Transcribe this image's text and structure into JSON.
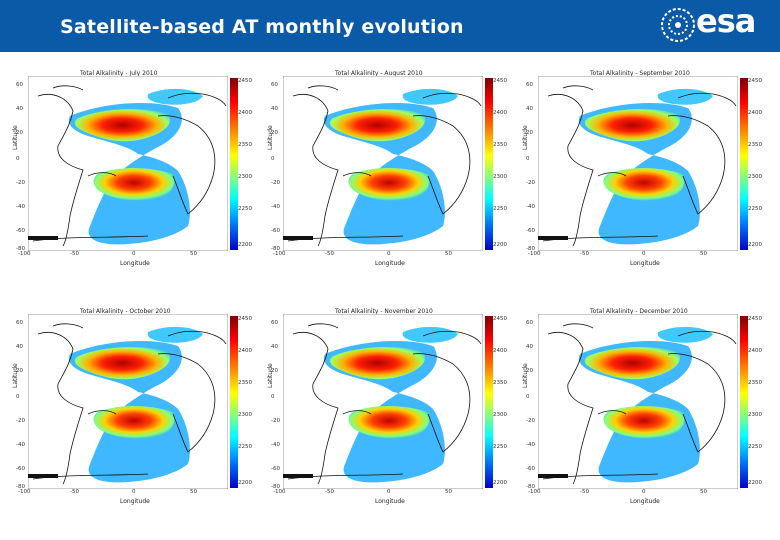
{
  "header": {
    "title": "Satellite-based AT monthly evolution",
    "logo_text": "esa",
    "bg_color": "#0a5aa8"
  },
  "axes": {
    "y_label": "Latitude",
    "x_label": "Longitude",
    "y_ticks": [
      "60",
      "40",
      "20",
      "0",
      "-20",
      "-40",
      "-60",
      "-80"
    ],
    "x_ticks": [
      "-100",
      "-50",
      "0",
      "50"
    ],
    "colorbar_ticks": [
      "2450",
      "2400",
      "2350",
      "2300",
      "2250",
      "2200"
    ]
  },
  "maps": [
    {
      "title": "Total Alkalinity - July 2010"
    },
    {
      "title": "Total Alkalinity - August 2010"
    },
    {
      "title": "Total Alkalinity - September 2010"
    },
    {
      "title": "Total Alkalinity - October 2010"
    },
    {
      "title": "Total Alkalinity - November 2010"
    },
    {
      "title": "Total Alkalinity - December 2010"
    }
  ],
  "colors": {
    "high": "#c00000",
    "mid": "#ffff00",
    "low": "#0000c8"
  }
}
